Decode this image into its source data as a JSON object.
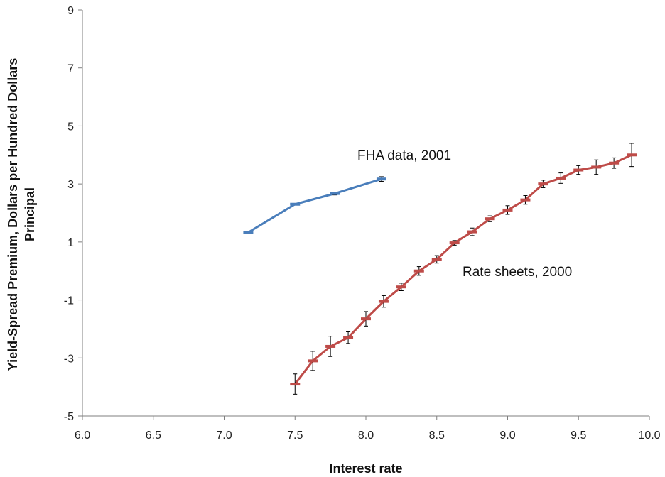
{
  "chart_data": {
    "type": "line",
    "title": "",
    "xlabel": "Interest rate",
    "ylabel_lines": [
      "Yield-Spread Premium, Dollars per Hundred Dollars",
      "Principal"
    ],
    "xlim": [
      6.0,
      10.0
    ],
    "ylim": [
      -5,
      9
    ],
    "x_ticks": [
      "6.0",
      "6.5",
      "7.0",
      "7.5",
      "8.0",
      "8.5",
      "9.0",
      "9.5",
      "10.0"
    ],
    "y_ticks": [
      "-5",
      "-3",
      "-1",
      "1",
      "3",
      "5",
      "7",
      "9"
    ],
    "grid": false,
    "legend": "none",
    "series": [
      {
        "label": "FHA data, 2001",
        "color": "#4a7ebb",
        "x": [
          7.17,
          7.5,
          7.78,
          8.11
        ],
        "y": [
          1.33,
          2.3,
          2.67,
          3.17
        ],
        "err": [
          0.0,
          0.03,
          0.05,
          0.08
        ]
      },
      {
        "label": "Rate sheets, 2000",
        "color": "#be4b48",
        "x": [
          7.5,
          7.625,
          7.75,
          7.875,
          8.0,
          8.125,
          8.25,
          8.375,
          8.5,
          8.625,
          8.75,
          8.875,
          9.0,
          9.125,
          9.25,
          9.375,
          9.5,
          9.625,
          9.75,
          9.875
        ],
        "y": [
          -3.9,
          -3.1,
          -2.6,
          -2.3,
          -1.65,
          -1.05,
          -0.55,
          0.0,
          0.4,
          0.97,
          1.35,
          1.8,
          2.1,
          2.45,
          3.0,
          3.2,
          3.48,
          3.58,
          3.72,
          4.0
        ],
        "err": [
          0.35,
          0.33,
          0.35,
          0.2,
          0.25,
          0.2,
          0.13,
          0.15,
          0.13,
          0.08,
          0.13,
          0.1,
          0.15,
          0.15,
          0.13,
          0.18,
          0.15,
          0.25,
          0.18,
          0.4
        ]
      }
    ]
  }
}
